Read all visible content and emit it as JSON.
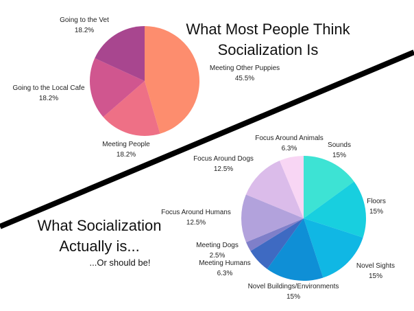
{
  "chart_data": [
    {
      "type": "pie",
      "title": "What Most People Think Socialization Is",
      "title_lines": [
        "What Most People Think",
        "Socialization Is"
      ],
      "labels": [
        "Meeting Other Puppies",
        "Meeting People",
        "Going to the Local Cafe",
        "Going to the Vet"
      ],
      "values": [
        45.5,
        18.2,
        18.2,
        18.2
      ],
      "value_labels": [
        "45.5%",
        "18.2%",
        "18.2%",
        "18.2%"
      ],
      "colors": [
        "#fd8d6e",
        "#ee7086",
        "#d0568f",
        "#a8468f"
      ]
    },
    {
      "type": "pie",
      "title": "What Socialization Actually is...",
      "title_lines": [
        "What Socialization",
        "Actually is..."
      ],
      "subtitle": "...Or should be!",
      "labels": [
        "Sounds",
        "Floors",
        "Novel Sights",
        "Novel Buildings/Environments",
        "Meeting Humans",
        "Meeting Dogs",
        "Focus Around Humans",
        "Focus Around Dogs",
        "Focus Around Animals"
      ],
      "values": [
        15,
        15,
        15,
        15,
        6.3,
        2.5,
        12.5,
        12.5,
        6.3
      ],
      "value_labels": [
        "15%",
        "15%",
        "15%",
        "15%",
        "6.3%",
        "2.5%",
        "12.5%",
        "12.5%",
        "6.3%"
      ],
      "colors": [
        "#3de3d4",
        "#18cfdf",
        "#10b7e4",
        "#0f8fd6",
        "#3e6ac2",
        "#7f7fc9",
        "#b2a2dc",
        "#dbbcea",
        "#f8d6f4"
      ]
    }
  ]
}
